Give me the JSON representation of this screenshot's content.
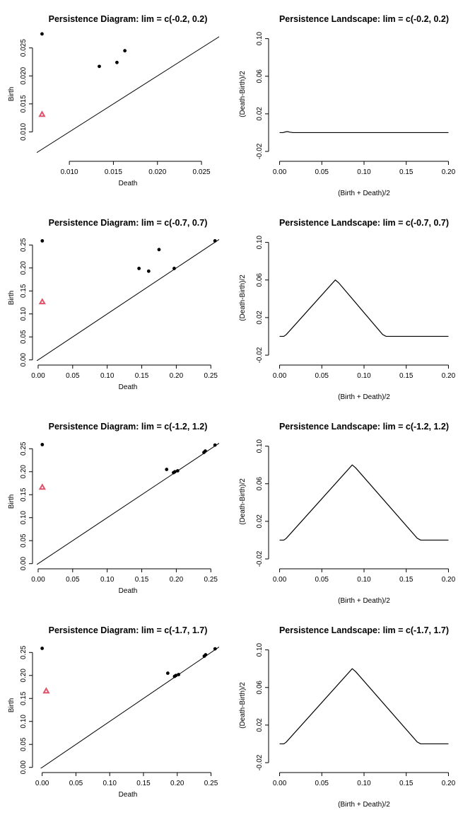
{
  "chart_data": [
    {
      "type": "scatter",
      "title": "Persistence Diagram: lim = c(-0.2, 0.2)",
      "xlabel": "Death",
      "ylabel": "Birth",
      "xlim": [
        0.0063,
        0.027
      ],
      "ylim": [
        0.0055,
        0.028
      ],
      "xticks": [
        0.01,
        0.015,
        0.02,
        0.025
      ],
      "xticklabels": [
        "0.010",
        "0.015",
        "0.020",
        "0.025"
      ],
      "yticks": [
        0.01,
        0.015,
        0.02,
        0.025
      ],
      "yticklabels": [
        "0.010",
        "0.015",
        "0.020",
        "0.025"
      ],
      "diagonal": true,
      "series": [
        {
          "marker": "filled-circle",
          "color": "#000000",
          "x": [
            0.0069,
            0.0134,
            0.0154,
            0.0163
          ],
          "y": [
            0.0275,
            0.0217,
            0.0224,
            0.0245
          ]
        },
        {
          "marker": "triangle",
          "color": "#DF536B",
          "x": [
            0.0069
          ],
          "y": [
            0.0131
          ]
        }
      ]
    },
    {
      "type": "line",
      "title": "Persistence Landscape: lim = c(-0.2, 0.2)",
      "xlabel": "(Birth + Death)/2",
      "ylabel": "(Death-Birth)/2",
      "xlim": [
        -0.008,
        0.208
      ],
      "ylim": [
        -0.026,
        0.108
      ],
      "xticks": [
        0.0,
        0.05,
        0.1,
        0.15,
        0.2
      ],
      "xticklabels": [
        "0.00",
        "0.05",
        "0.10",
        "0.15",
        "0.20"
      ],
      "yticks": [
        -0.02,
        0.02,
        0.06,
        0.1
      ],
      "yticklabels": [
        "-0.02",
        "0.02",
        "0.06",
        "0.10"
      ],
      "x": [
        0.0,
        0.004,
        0.008,
        0.01,
        0.012,
        0.016,
        0.2
      ],
      "y": [
        0.0,
        0.0,
        0.001,
        0.001,
        0.0005,
        0.0,
        0.0
      ]
    },
    {
      "type": "scatter",
      "title": "Persistence Diagram: lim = c(-0.7, 0.7)",
      "xlabel": "Death",
      "ylabel": "Birth",
      "xlim": [
        -0.002,
        0.262
      ],
      "ylim": [
        -0.002,
        0.272
      ],
      "xticks": [
        0.0,
        0.05,
        0.1,
        0.15,
        0.2,
        0.25
      ],
      "xticklabels": [
        "0.00",
        "0.05",
        "0.10",
        "0.15",
        "0.20",
        "0.25"
      ],
      "yticks": [
        0.0,
        0.05,
        0.1,
        0.15,
        0.2,
        0.25
      ],
      "yticklabels": [
        "0.00",
        "0.05",
        "0.10",
        "0.15",
        "0.20",
        "0.25"
      ],
      "diagonal": true,
      "series": [
        {
          "marker": "filled-circle",
          "color": "#000000",
          "x": [
            0.006,
            0.146,
            0.16,
            0.175,
            0.197,
            0.256
          ],
          "y": [
            0.259,
            0.199,
            0.193,
            0.24,
            0.199,
            0.259
          ]
        },
        {
          "marker": "triangle",
          "color": "#DF536B",
          "x": [
            0.006
          ],
          "y": [
            0.126
          ]
        }
      ]
    },
    {
      "type": "line",
      "title": "Persistence Landscape: lim = c(-0.7, 0.7)",
      "xlabel": "(Birth + Death)/2",
      "ylabel": "(Death-Birth)/2",
      "xlim": [
        -0.008,
        0.208
      ],
      "ylim": [
        -0.026,
        0.108
      ],
      "xticks": [
        0.0,
        0.05,
        0.1,
        0.15,
        0.2
      ],
      "xticklabels": [
        "0.00",
        "0.05",
        "0.10",
        "0.15",
        "0.20"
      ],
      "yticks": [
        -0.02,
        0.02,
        0.06,
        0.1
      ],
      "yticklabels": [
        "-0.02",
        "0.02",
        "0.06",
        "0.10"
      ],
      "x": [
        0.0,
        0.005,
        0.008,
        0.066,
        0.07,
        0.122,
        0.126,
        0.2
      ],
      "y": [
        0.0,
        0.0,
        0.002,
        0.06,
        0.057,
        0.002,
        0.0,
        0.0
      ]
    },
    {
      "type": "scatter",
      "title": "Persistence Diagram: lim = c(-1.2, 1.2)",
      "xlabel": "Death",
      "ylabel": "Birth",
      "xlim": [
        -0.002,
        0.262
      ],
      "ylim": [
        -0.002,
        0.272
      ],
      "xticks": [
        0.0,
        0.05,
        0.1,
        0.15,
        0.2,
        0.25
      ],
      "xticklabels": [
        "0.00",
        "0.05",
        "0.10",
        "0.15",
        "0.20",
        "0.25"
      ],
      "yticks": [
        0.0,
        0.05,
        0.1,
        0.15,
        0.2,
        0.25
      ],
      "yticklabels": [
        "0.00",
        "0.05",
        "0.10",
        "0.15",
        "0.20",
        "0.25"
      ],
      "diagonal": true,
      "series": [
        {
          "marker": "filled-circle",
          "color": "#000000",
          "x": [
            0.006,
            0.186,
            0.196,
            0.198,
            0.202,
            0.24,
            0.242,
            0.256
          ],
          "y": [
            0.259,
            0.205,
            0.198,
            0.2,
            0.202,
            0.242,
            0.245,
            0.258
          ]
        },
        {
          "marker": "triangle",
          "color": "#DF536B",
          "x": [
            0.006
          ],
          "y": [
            0.166
          ]
        }
      ]
    },
    {
      "type": "line",
      "title": "Persistence Landscape: lim = c(-1.2, 1.2)",
      "xlabel": "(Birth + Death)/2",
      "ylabel": "(Death-Birth)/2",
      "xlim": [
        -0.008,
        0.208
      ],
      "ylim": [
        -0.026,
        0.108
      ],
      "xticks": [
        0.0,
        0.05,
        0.1,
        0.15,
        0.2
      ],
      "xticklabels": [
        "0.00",
        "0.05",
        "0.10",
        "0.15",
        "0.20"
      ],
      "yticks": [
        -0.02,
        0.02,
        0.06,
        0.1
      ],
      "yticklabels": [
        "-0.02",
        "0.02",
        "0.06",
        "0.10"
      ],
      "x": [
        0.0,
        0.005,
        0.008,
        0.086,
        0.09,
        0.163,
        0.167,
        0.2
      ],
      "y": [
        0.0,
        0.0,
        0.002,
        0.08,
        0.077,
        0.002,
        0.0,
        0.0
      ]
    },
    {
      "type": "scatter",
      "title": "Persistence Diagram: lim = c(-1.7, 1.7)",
      "xlabel": "Death",
      "ylabel": "Birth",
      "xlim": [
        -0.008,
        0.262
      ],
      "ylim": [
        -0.002,
        0.272
      ],
      "xticks": [
        0.0,
        0.05,
        0.1,
        0.15,
        0.2,
        0.25
      ],
      "xticklabels": [
        "0.00",
        "0.05",
        "0.10",
        "0.15",
        "0.20",
        "0.25"
      ],
      "yticks": [
        0.0,
        0.05,
        0.1,
        0.15,
        0.2,
        0.25
      ],
      "yticklabels": [
        "0.00",
        "0.05",
        "0.10",
        "0.15",
        "0.20",
        "0.25"
      ],
      "diagonal": true,
      "series": [
        {
          "marker": "filled-circle",
          "color": "#000000",
          "x": [
            0.0,
            0.186,
            0.196,
            0.198,
            0.202,
            0.24,
            0.242,
            0.256
          ],
          "y": [
            0.259,
            0.205,
            0.198,
            0.2,
            0.202,
            0.242,
            0.245,
            0.258
          ]
        },
        {
          "marker": "triangle",
          "color": "#DF536B",
          "x": [
            0.006
          ],
          "y": [
            0.166
          ]
        }
      ]
    },
    {
      "type": "line",
      "title": "Persistence Landscape: lim = c(-1.7, 1.7)",
      "xlabel": "(Birth + Death)/2",
      "ylabel": "(Death-Birth)/2",
      "xlim": [
        -0.008,
        0.208
      ],
      "ylim": [
        -0.026,
        0.108
      ],
      "xticks": [
        0.0,
        0.05,
        0.1,
        0.15,
        0.2
      ],
      "xticklabels": [
        "0.00",
        "0.05",
        "0.10",
        "0.15",
        "0.20"
      ],
      "yticks": [
        -0.02,
        0.02,
        0.06,
        0.1
      ],
      "yticklabels": [
        "-0.02",
        "0.02",
        "0.06",
        "0.10"
      ],
      "x": [
        0.0,
        0.005,
        0.008,
        0.086,
        0.09,
        0.163,
        0.167,
        0.2
      ],
      "y": [
        0.0,
        0.0,
        0.002,
        0.08,
        0.077,
        0.002,
        0.0,
        0.0
      ]
    }
  ]
}
